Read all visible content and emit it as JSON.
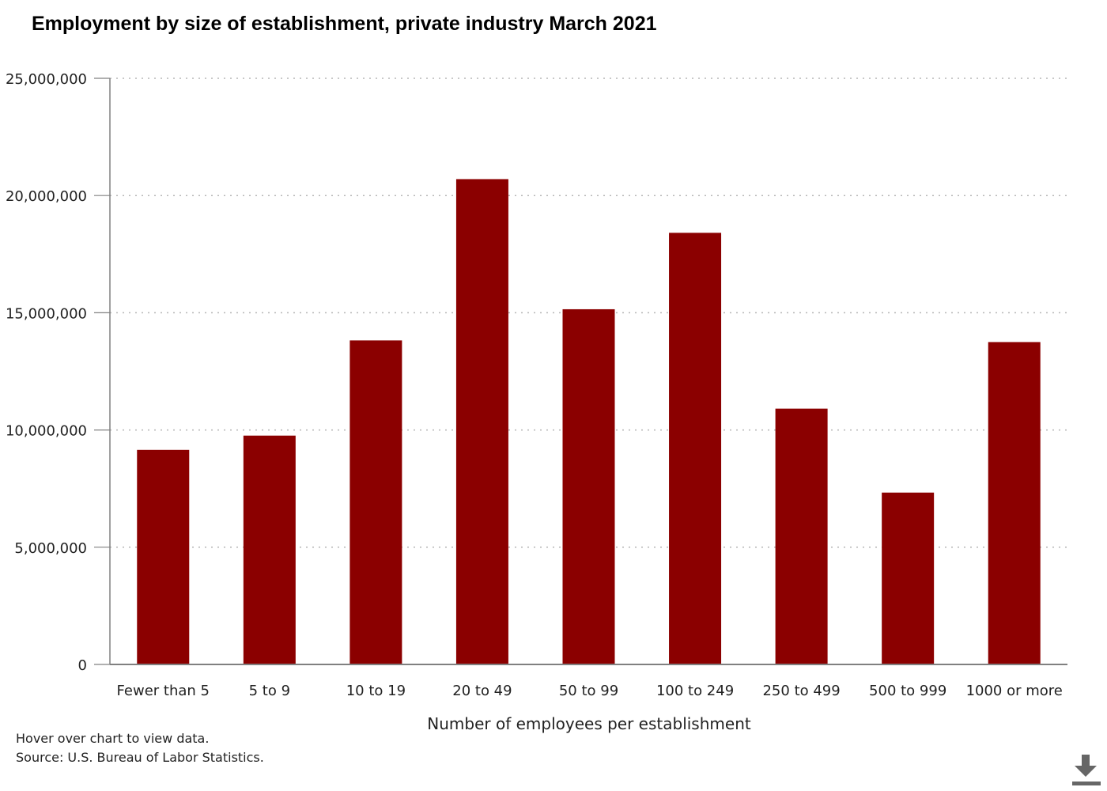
{
  "chart_data": {
    "type": "bar",
    "title": "Employment by size of establishment, private industry March 2021",
    "xlabel": "Number of employees per establishment",
    "ylabel": "",
    "categories": [
      "Fewer than 5",
      "5 to 9",
      "10 to 19",
      "20 to 49",
      "50 to 99",
      "100 to 249",
      "250 to 499",
      "500 to 999",
      "1000 or more"
    ],
    "values": [
      9150000,
      9760000,
      13820000,
      20700000,
      15150000,
      18410000,
      10910000,
      7330000,
      13750000
    ],
    "ylim": [
      0,
      25000000
    ],
    "yticks": [
      0,
      5000000,
      10000000,
      15000000,
      20000000,
      25000000
    ],
    "ytick_labels": [
      "0",
      "5,000,000",
      "10,000,000",
      "15,000,000",
      "20,000,000",
      "25,000,000"
    ],
    "grid": "horizontal-dotted",
    "legend": "none",
    "bar_color": "#8b0000"
  },
  "footnotes": {
    "hover": "Hover over chart to view data.",
    "source": "Source: U.S. Bureau of Labor Statistics."
  },
  "download": {
    "icon": "download-icon"
  }
}
